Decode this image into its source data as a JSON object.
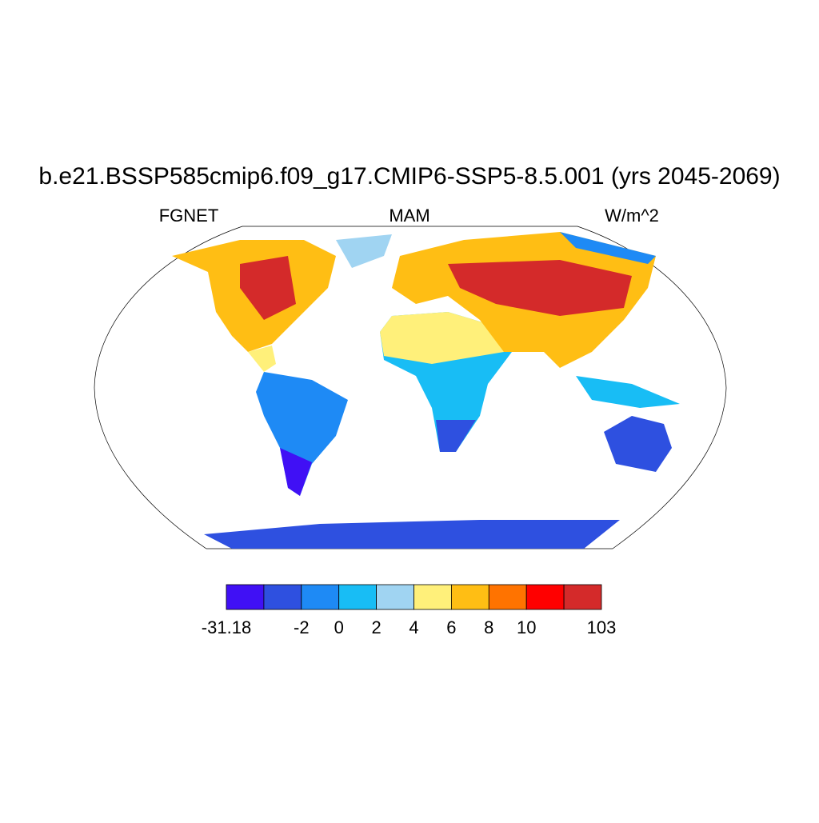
{
  "header": {
    "title": "b.e21.BSSP585cmip6.f09_g17.CMIP6-SSP5-8.5.001 (yrs 2045-2069)",
    "left": "FGNET",
    "center": "MAM",
    "right": "W/m^2"
  },
  "colorbar": {
    "colors": [
      "#4010f5",
      "#2e50e0",
      "#1e8af5",
      "#18bdf5",
      "#a0d4f2",
      "#fff07a",
      "#ffbe14",
      "#ff7300",
      "#ff0000",
      "#d42a2a"
    ],
    "edges": [
      -31.18,
      null,
      -2,
      0,
      2,
      4,
      6,
      8,
      10,
      null,
      103
    ]
  }
}
